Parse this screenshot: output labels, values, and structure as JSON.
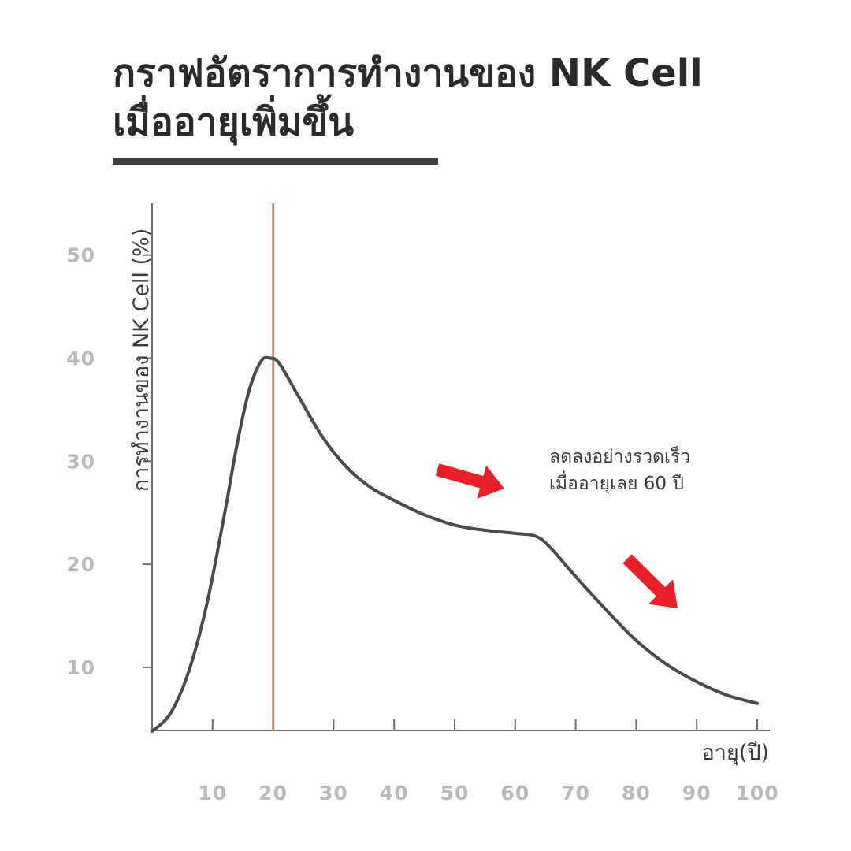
{
  "title": {
    "line1": "กราฟอัตราการทำงานของ NK Cell",
    "line2": "เมื่ออายุเพิ่มขึ้น"
  },
  "colors": {
    "curve": "#4a4a4a",
    "marker_line": "#d0202a",
    "arrows": "#e8202a",
    "tick_labels": "#b9b9b9",
    "title": "#2b2b2b"
  },
  "chart_data": {
    "type": "line",
    "title": "กราฟอัตราการทำงานของ NK Cell เมื่ออายุเพิ่มขึ้น",
    "xlabel": "อายุ(ปี)",
    "ylabel": "การทำงานของ NK Cell (%)",
    "x_ticks": [
      10,
      20,
      30,
      40,
      50,
      60,
      70,
      80,
      90,
      100
    ],
    "y_ticks": [
      10,
      20,
      30,
      40,
      50
    ],
    "xlim": [
      0,
      102
    ],
    "ylim": [
      3.8,
      55
    ],
    "grid": false,
    "series": [
      {
        "x": [
          0,
          3,
          6,
          9,
          12,
          14,
          16,
          18,
          19.5,
          21,
          24,
          28,
          32,
          36,
          40,
          45,
          50,
          55,
          60,
          63.5,
          66,
          70,
          75,
          80,
          85,
          90,
          95,
          100
        ],
        "y": [
          3.8,
          5.5,
          9.5,
          16,
          25,
          31.5,
          36.8,
          39.7,
          40,
          39.5,
          36.5,
          32.5,
          29.5,
          27.5,
          26.2,
          24.8,
          23.8,
          23.3,
          23.0,
          22.7,
          21.5,
          18.8,
          15.6,
          12.6,
          10.3,
          8.6,
          7.3,
          6.5
        ]
      }
    ],
    "reference_line_x": 20,
    "annotation": {
      "line1": "ลดลงอย่างรวดเร็ว",
      "line2": "เมื่ออายุเลย 60 ปี"
    }
  }
}
